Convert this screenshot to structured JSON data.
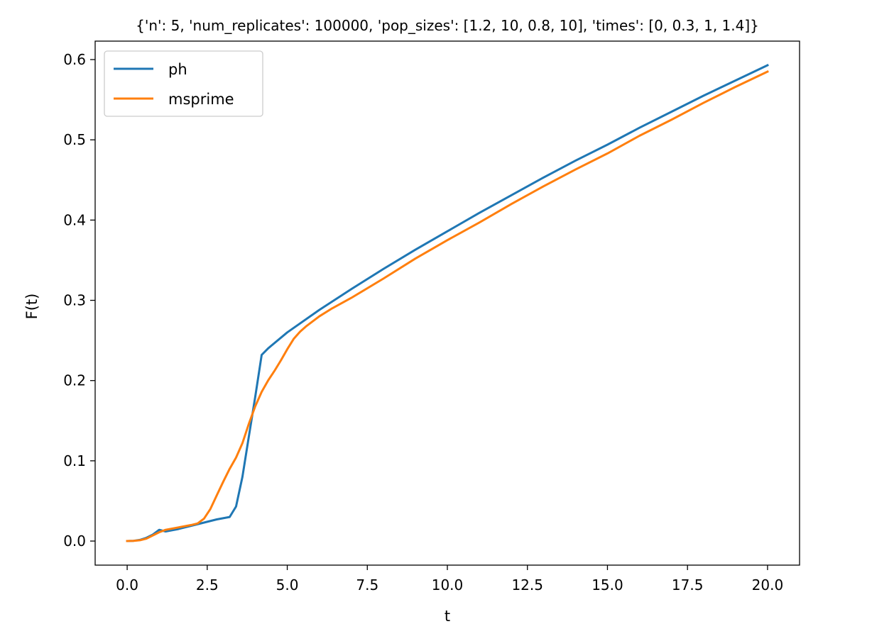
{
  "chart_data": {
    "type": "line",
    "title": "{'n': 5, 'num_replicates': 100000, 'pop_sizes': [1.2, 10, 0.8, 10], 'times': [0, 0.3, 1, 1.4]}",
    "xlabel": "t",
    "ylabel": "F(t)",
    "xlim": [
      -1,
      21
    ],
    "ylim": [
      -0.03,
      0.623
    ],
    "x_ticks": [
      0.0,
      2.5,
      5.0,
      7.5,
      10.0,
      12.5,
      15.0,
      17.5,
      20.0
    ],
    "x_tick_labels": [
      "0.0",
      "2.5",
      "5.0",
      "7.5",
      "10.0",
      "12.5",
      "15.0",
      "17.5",
      "20.0"
    ],
    "y_ticks": [
      0.0,
      0.1,
      0.2,
      0.3,
      0.4,
      0.5,
      0.6
    ],
    "y_tick_labels": [
      "0.0",
      "0.1",
      "0.2",
      "0.3",
      "0.4",
      "0.5",
      "0.6"
    ],
    "grid": false,
    "legend_position": "top-left",
    "series": [
      {
        "name": "ph",
        "color": "#1f77b4",
        "x": [
          0,
          0.2,
          0.4,
          0.6,
          0.8,
          1.0,
          1.2,
          1.6,
          2.0,
          2.4,
          2.8,
          3.2,
          3.4,
          3.6,
          3.8,
          4.0,
          4.2,
          4.4,
          5.0,
          6.0,
          7.0,
          8.0,
          9.0,
          10.0,
          11.0,
          12.0,
          13.0,
          14.0,
          15.0,
          16.0,
          17.0,
          18.0,
          19.0,
          20.0
        ],
        "y": [
          0.0,
          0.0003,
          0.0015,
          0.004,
          0.008,
          0.014,
          0.012,
          0.015,
          0.019,
          0.023,
          0.027,
          0.03,
          0.043,
          0.08,
          0.13,
          0.18,
          0.232,
          0.24,
          0.26,
          0.288,
          0.314,
          0.339,
          0.363,
          0.386,
          0.409,
          0.431,
          0.453,
          0.474,
          0.494,
          0.515,
          0.535,
          0.555,
          0.574,
          0.593
        ]
      },
      {
        "name": "msprime",
        "color": "#ff7f0e",
        "x": [
          0,
          0.2,
          0.4,
          0.6,
          0.8,
          1.0,
          1.2,
          1.6,
          2.0,
          2.2,
          2.4,
          2.6,
          2.8,
          3.0,
          3.2,
          3.4,
          3.6,
          3.8,
          4.0,
          4.2,
          4.4,
          4.6,
          4.8,
          5.0,
          5.2,
          5.4,
          5.6,
          6.0,
          6.4,
          7.0,
          8.0,
          9.0,
          10.0,
          11.0,
          12.0,
          13.0,
          14.0,
          15.0,
          16.0,
          17.0,
          18.0,
          19.0,
          20.0
        ],
        "y": [
          0.0,
          0.0003,
          0.001,
          0.003,
          0.007,
          0.011,
          0.014,
          0.017,
          0.02,
          0.022,
          0.028,
          0.04,
          0.057,
          0.074,
          0.09,
          0.104,
          0.122,
          0.146,
          0.168,
          0.186,
          0.2,
          0.212,
          0.225,
          0.239,
          0.252,
          0.261,
          0.268,
          0.28,
          0.29,
          0.303,
          0.327,
          0.352,
          0.375,
          0.397,
          0.42,
          0.442,
          0.463,
          0.483,
          0.505,
          0.525,
          0.546,
          0.566,
          0.585
        ]
      }
    ]
  }
}
